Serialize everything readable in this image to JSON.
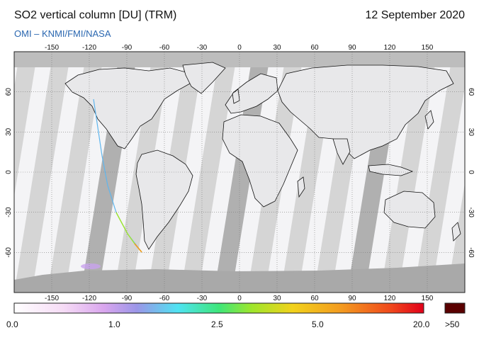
{
  "header": {
    "title": "SO2 vertical column [DU] (TRM)",
    "date": "12 September 2020",
    "credit": "OMI  –  KNMI/FMI/NASA"
  },
  "map": {
    "lon_ticks": [
      "-150",
      "-120",
      "-90",
      "-60",
      "-30",
      "0",
      "30",
      "60",
      "90",
      "120",
      "150"
    ],
    "lat_ticks": [
      "60",
      "30",
      "0",
      "-30",
      "-60"
    ],
    "lat_ticks_right": [
      "60",
      "30",
      "0",
      "-30",
      "-60"
    ]
  },
  "colorbar": {
    "labels": [
      "0.0",
      "1.0",
      "2.5",
      "5.0",
      "20.0"
    ],
    "overflow_label": ">50",
    "colors": [
      "#ffffff",
      "#f4d6f5",
      "#d9a6ee",
      "#9f97e6",
      "#4fe3f2",
      "#3ee67a",
      "#9ee62c",
      "#f2d21b",
      "#f39a20",
      "#f0481c",
      "#e1001a"
    ],
    "overflow_color": "#5a0000"
  }
}
